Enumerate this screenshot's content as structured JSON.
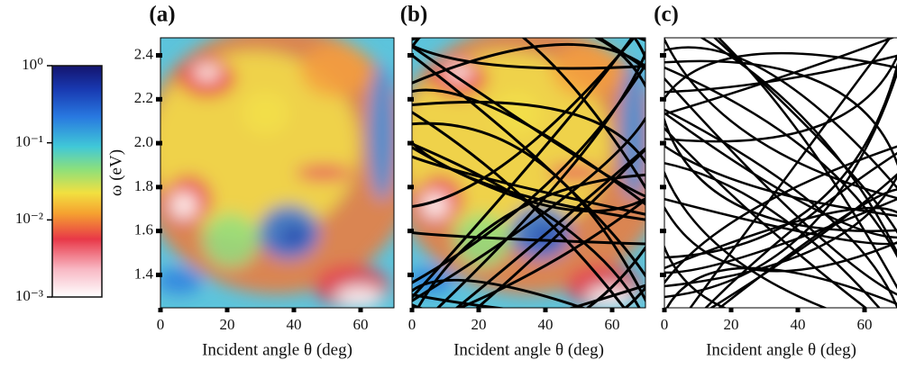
{
  "chart_data": [
    {
      "type": "heatmap",
      "panel_label": "(a)",
      "y_label": "ω (eV)",
      "x_label": "Incident angle θ (deg)",
      "xlim": [
        0,
        70
      ],
      "xticks": [
        0,
        20,
        40,
        60
      ],
      "ylim": [
        1.25,
        2.48
      ],
      "yticks": [
        1.4,
        1.6,
        1.8,
        {
          "value": 2,
          "label": "2.0"
        },
        2.2,
        2.4
      ],
      "colorbar": {
        "log": true,
        "lim": [
          0.001,
          1
        ],
        "ticks": [
          {
            "value": 1,
            "label": "10⁰"
          },
          {
            "value": 0.1,
            "label": "10⁻¹"
          },
          {
            "value": 0.01,
            "label": "10⁻²"
          },
          {
            "value": 0.001,
            "label": "10⁻³"
          }
        ]
      }
    },
    {
      "type": "heatmap",
      "panel_label": "(b)",
      "x_label": "Incident angle θ (deg)",
      "overlay_lines": true,
      "xlim": [
        0,
        70
      ],
      "xticks": [
        0,
        20,
        40,
        60
      ],
      "ylim": [
        1.25,
        2.48
      ],
      "yticks": [
        1.4,
        1.6,
        1.8,
        2,
        2.2,
        2.4
      ]
    },
    {
      "type": "lines",
      "panel_label": "(c)",
      "x_label": "Incident angle θ (deg)",
      "overlay_lines": true,
      "xlim": [
        0,
        70
      ],
      "xticks": [
        0,
        20,
        40,
        60
      ],
      "ylim": [
        1.25,
        2.48
      ],
      "yticks": [
        1.4,
        1.6,
        1.8,
        2,
        2.2,
        2.4
      ]
    }
  ]
}
